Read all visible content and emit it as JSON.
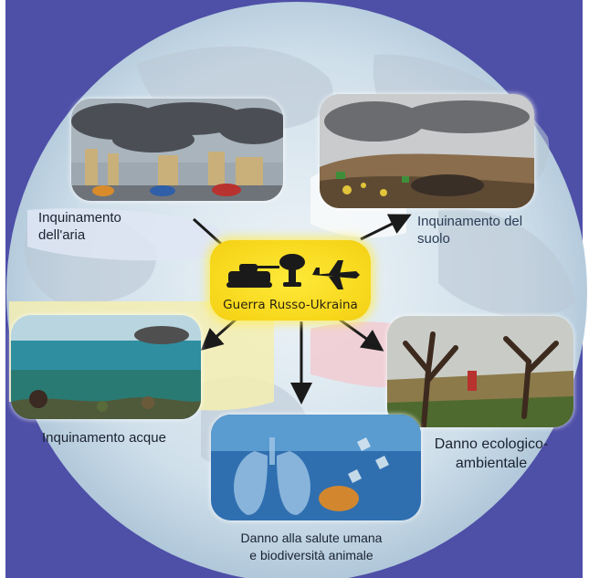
{
  "center": {
    "label": "Guerra Russo-Ukraina",
    "icons": [
      "tank-icon",
      "explosion-icon",
      "fighter-jet-icon"
    ]
  },
  "nodes": {
    "air": {
      "line1": "Inquinamento",
      "line2": "dell'aria"
    },
    "soil": {
      "line1": "Inquinamento del",
      "line2": "suolo"
    },
    "water": {
      "label": "Inquinamento acque"
    },
    "ecology": {
      "line1": "Danno ecologico-",
      "line2": "ambientale"
    },
    "health": {
      "line1": "Danno alla salute umana",
      "line2": "e biodiversità animale"
    }
  },
  "colors": {
    "frame_blue": "#4e4fa7",
    "globe": "#c9dbe8",
    "center_yellow": "#f7d81c",
    "arrow": "#1a1a1a"
  }
}
